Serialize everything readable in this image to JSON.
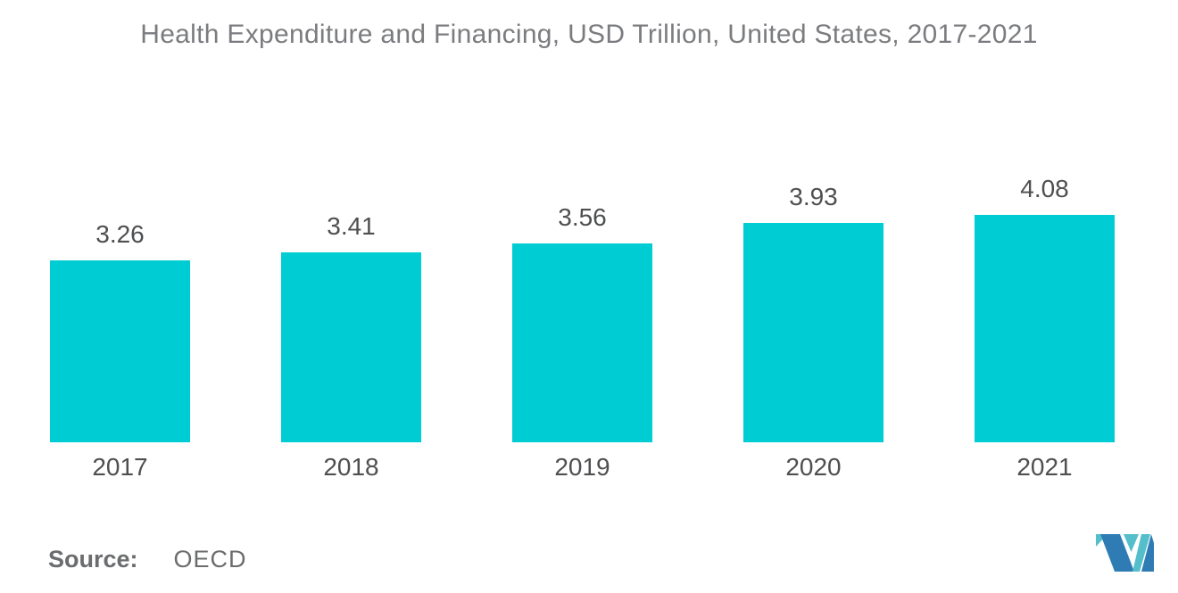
{
  "chart_data": {
    "type": "bar",
    "title": "Health Expenditure and Financing, USD Trillion, United States, 2017-2021",
    "categories": [
      "2017",
      "2018",
      "2019",
      "2020",
      "2021"
    ],
    "values": [
      3.26,
      3.41,
      3.56,
      3.93,
      4.08
    ],
    "value_labels": [
      "3.26",
      "3.41",
      "3.56",
      "3.93",
      "4.08"
    ],
    "xlabel": "",
    "ylabel": "",
    "ylim": [
      0,
      4.4
    ],
    "grid": false,
    "legend": "none",
    "axes_visible": false,
    "bar_color": "#00CCD3",
    "label_color": "#4E4F51",
    "title_color": "#7B7C7F"
  },
  "footer": {
    "source_label": "Source:",
    "source_value": "OECD",
    "logo": {
      "name": "mordor-intelligence-logo",
      "teal": "#55BECB",
      "blue": "#2F7CB5"
    }
  }
}
